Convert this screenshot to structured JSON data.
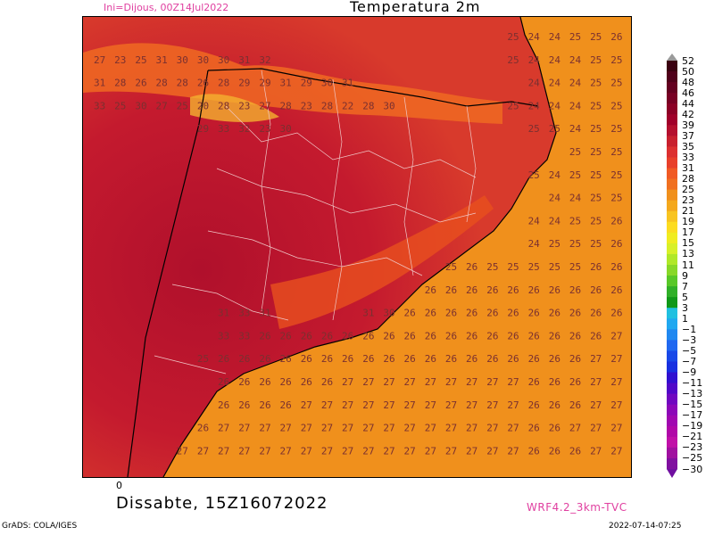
{
  "header": {
    "init_text": "Ini=Dijous, 00Z14Jul2022",
    "title": "Temperatura 2m"
  },
  "footer": {
    "axis_zero": "0",
    "valid_time": "Dissabte, 15Z16072022",
    "model": "WRF4.2_3km-TVC",
    "credit": "GrADS: COLA/IGES",
    "timestamp": "2022-07-14-07:25"
  },
  "colorbar": {
    "labels": [
      "52",
      "50",
      "48",
      "46",
      "44",
      "42",
      "39",
      "37",
      "35",
      "33",
      "31",
      "28",
      "25",
      "23",
      "21",
      "19",
      "17",
      "15",
      "13",
      "11",
      "9",
      "7",
      "5",
      "3",
      "1",
      "−1",
      "−3",
      "−5",
      "−7",
      "−9",
      "−11",
      "−13",
      "−15",
      "−17",
      "−19",
      "−21",
      "−23",
      "−25",
      "−30"
    ],
    "colors": [
      "#3a0010",
      "#50001a",
      "#640020",
      "#780024",
      "#8c0026",
      "#a0002a",
      "#b4102e",
      "#c8202e",
      "#dc3030",
      "#e8402a",
      "#f05a24",
      "#f07020",
      "#f0901c",
      "#f4a81c",
      "#f8c420",
      "#fcdc20",
      "#f0ec20",
      "#d8f028",
      "#b0e828",
      "#88d828",
      "#58c828",
      "#30b028",
      "#109818",
      "#20c0e0",
      "#20a8f0",
      "#2088f0",
      "#2068f0",
      "#1848e8",
      "#1830e0",
      "#3010d0",
      "#5008c8",
      "#7008c0",
      "#8c08b8",
      "#a008b0",
      "#b008a8",
      "#c010a8",
      "#a010a0",
      "#8010a0"
    ]
  },
  "map": {
    "grid_rows": [
      [
        "",
        "",
        "",
        "",
        "",
        "",
        "",
        "",
        "",
        "",
        "",
        "",
        "",
        "",
        "",
        "",
        "",
        "",
        "",
        "",
        "25",
        "24",
        "24",
        "25",
        "25",
        "26"
      ],
      [
        "27",
        "23",
        "25",
        "31",
        "30",
        "30",
        "30",
        "31",
        "32",
        "",
        "",
        "",
        "",
        "",
        "",
        "",
        "",
        "",
        "",
        "",
        "25",
        "24",
        "24",
        "24",
        "25",
        "25"
      ],
      [
        "31",
        "28",
        "26",
        "28",
        "28",
        "26",
        "28",
        "29",
        "29",
        "31",
        "29",
        "30",
        "31",
        "",
        "",
        "",
        "",
        "",
        "",
        "",
        "",
        "24",
        "24",
        "24",
        "25",
        "25"
      ],
      [
        "33",
        "25",
        "30",
        "27",
        "25",
        "20",
        "28",
        "23",
        "27",
        "28",
        "23",
        "28",
        "22",
        "28",
        "30",
        "",
        "",
        "",
        "",
        "",
        "25",
        "24",
        "24",
        "24",
        "25",
        "25"
      ],
      [
        "",
        "",
        "",
        "",
        "",
        "29",
        "33",
        "32",
        "23",
        "30",
        "",
        "",
        "",
        "",
        "",
        "",
        "",
        "",
        "",
        "",
        "",
        "25",
        "25",
        "24",
        "25",
        "25"
      ],
      [
        "",
        "",
        "",
        "",
        "",
        "",
        "",
        "",
        "",
        "",
        "",
        "",
        "",
        "",
        "",
        "",
        "",
        "",
        "",
        "",
        "",
        "",
        "",
        "25",
        "25",
        "25"
      ],
      [
        "",
        "",
        "",
        "",
        "",
        "",
        "",
        "",
        "",
        "",
        "",
        "",
        "",
        "",
        "",
        "",
        "",
        "",
        "",
        "",
        "",
        "25",
        "24",
        "25",
        "25",
        "25"
      ],
      [
        "",
        "",
        "",
        "",
        "",
        "",
        "",
        "",
        "",
        "",
        "",
        "",
        "",
        "",
        "",
        "",
        "",
        "",
        "",
        "",
        "",
        "",
        "24",
        "24",
        "25",
        "25"
      ],
      [
        "",
        "",
        "",
        "",
        "",
        "",
        "",
        "",
        "",
        "",
        "",
        "",
        "",
        "",
        "",
        "",
        "",
        "",
        "",
        "",
        "",
        "24",
        "24",
        "25",
        "25",
        "26"
      ],
      [
        "",
        "",
        "",
        "",
        "",
        "",
        "",
        "",
        "",
        "",
        "",
        "",
        "",
        "",
        "",
        "",
        "",
        "",
        "",
        "",
        "",
        "24",
        "25",
        "25",
        "25",
        "26"
      ],
      [
        "",
        "",
        "",
        "",
        "",
        "",
        "",
        "",
        "",
        "",
        "",
        "",
        "",
        "",
        "",
        "",
        "",
        "25",
        "26",
        "25",
        "25",
        "25",
        "25",
        "25",
        "26",
        "26"
      ],
      [
        "",
        "",
        "",
        "",
        "",
        "",
        "",
        "",
        "",
        "",
        "",
        "",
        "",
        "",
        "",
        "",
        "26",
        "26",
        "26",
        "26",
        "26",
        "26",
        "26",
        "26",
        "26",
        "26"
      ],
      [
        "",
        "",
        "",
        "",
        "",
        "",
        "31",
        "33",
        "31",
        "",
        "",
        "",
        "",
        "31",
        "30",
        "26",
        "26",
        "26",
        "26",
        "26",
        "26",
        "26",
        "26",
        "26",
        "26",
        "26"
      ],
      [
        "",
        "",
        "",
        "",
        "",
        "",
        "33",
        "33",
        "26",
        "26",
        "26",
        "26",
        "26",
        "26",
        "26",
        "26",
        "26",
        "26",
        "26",
        "26",
        "26",
        "26",
        "26",
        "26",
        "26",
        "27"
      ],
      [
        "",
        "",
        "",
        "",
        "",
        "25",
        "26",
        "26",
        "26",
        "26",
        "26",
        "26",
        "26",
        "26",
        "26",
        "26",
        "26",
        "26",
        "26",
        "26",
        "26",
        "26",
        "26",
        "26",
        "27",
        "27"
      ],
      [
        "",
        "",
        "",
        "",
        "",
        "",
        "26",
        "26",
        "26",
        "26",
        "26",
        "26",
        "27",
        "27",
        "27",
        "27",
        "27",
        "27",
        "27",
        "27",
        "27",
        "26",
        "26",
        "26",
        "27",
        "27"
      ],
      [
        "",
        "",
        "",
        "",
        "",
        "",
        "26",
        "26",
        "26",
        "26",
        "27",
        "27",
        "27",
        "27",
        "27",
        "27",
        "27",
        "27",
        "27",
        "27",
        "27",
        "26",
        "26",
        "26",
        "27",
        "27"
      ],
      [
        "",
        "",
        "",
        "",
        "",
        "26",
        "27",
        "27",
        "27",
        "27",
        "27",
        "27",
        "27",
        "27",
        "27",
        "27",
        "27",
        "27",
        "27",
        "27",
        "27",
        "26",
        "26",
        "27",
        "27",
        "27"
      ],
      [
        "",
        "",
        "",
        "",
        "27",
        "27",
        "27",
        "27",
        "27",
        "27",
        "27",
        "27",
        "27",
        "27",
        "27",
        "27",
        "27",
        "27",
        "27",
        "27",
        "27",
        "26",
        "26",
        "26",
        "27",
        "27"
      ]
    ]
  }
}
